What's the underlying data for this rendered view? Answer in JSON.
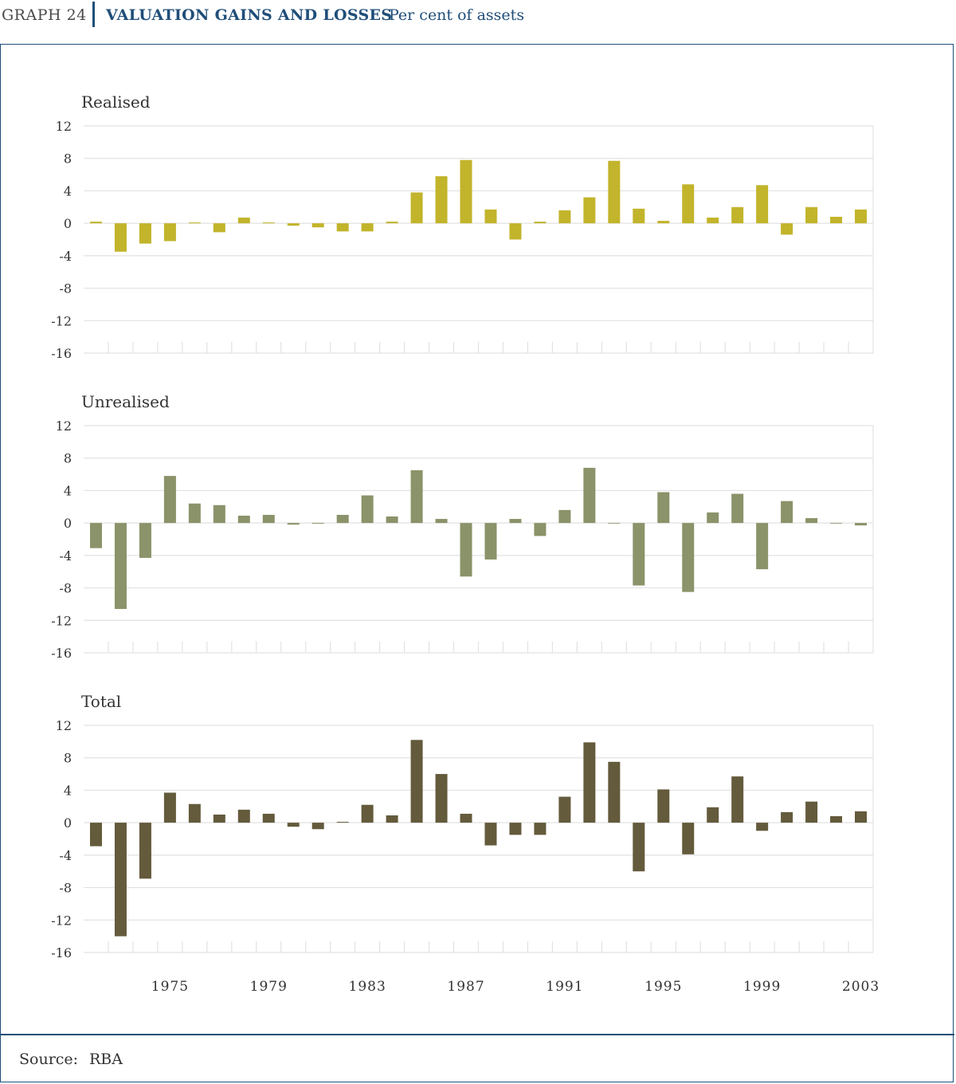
{
  "header": {
    "graph_number": "GRAPH 24",
    "title": "VALUATION GAINS AND LOSSES",
    "subtitle": "Per cent of assets"
  },
  "source": {
    "label": "Source:",
    "value": "RBA"
  },
  "colors": {
    "realised": "#c2b42b",
    "unrealised": "#8a9369",
    "total": "#645a3c",
    "grid": "#e2e2e2",
    "frame": "#1f4e79"
  },
  "chart_data": {
    "type": "bar",
    "x": [
      1972,
      1973,
      1974,
      1975,
      1976,
      1977,
      1978,
      1979,
      1980,
      1981,
      1982,
      1983,
      1984,
      1985,
      1986,
      1987,
      1988,
      1989,
      1990,
      1991,
      1992,
      1993,
      1994,
      1995,
      1996,
      1997,
      1998,
      1999,
      2000,
      2001,
      2002,
      2003
    ],
    "x_tick_labels": [
      "1975",
      "1979",
      "1983",
      "1987",
      "1991",
      "1995",
      "1999",
      "2003"
    ],
    "x_tick_years": [
      1975,
      1979,
      1983,
      1987,
      1991,
      1995,
      1999,
      2003
    ],
    "ylim": [
      -16,
      12
    ],
    "yticks": [
      12,
      8,
      4,
      0,
      -4,
      -8,
      -12,
      -16
    ],
    "grid": true,
    "panels": [
      {
        "title": "Realised",
        "color_key": "realised",
        "values": [
          0.2,
          -3.5,
          -2.5,
          -2.2,
          0.1,
          -1.1,
          0.7,
          0.1,
          -0.3,
          -0.5,
          -1.0,
          -1.0,
          0.2,
          3.8,
          5.8,
          7.8,
          1.7,
          -2.0,
          0.2,
          1.6,
          3.2,
          7.7,
          1.8,
          0.3,
          4.8,
          0.7,
          2.0,
          4.7,
          -1.4,
          2.0,
          0.8,
          1.7
        ]
      },
      {
        "title": "Unrealised",
        "color_key": "unrealised",
        "values": [
          -3.1,
          -10.6,
          -4.3,
          5.8,
          2.4,
          2.2,
          0.9,
          1.0,
          -0.2,
          -0.1,
          1.0,
          3.4,
          0.8,
          6.5,
          0.5,
          -6.6,
          -4.5,
          0.5,
          -1.6,
          1.6,
          6.8,
          0.0,
          -7.7,
          3.8,
          -8.5,
          1.3,
          3.6,
          -5.7,
          2.7,
          0.6,
          0.0,
          -0.3
        ]
      },
      {
        "title": "Total",
        "color_key": "total",
        "values": [
          -2.9,
          -14.0,
          -6.9,
          3.7,
          2.3,
          1.0,
          1.6,
          1.1,
          -0.5,
          -0.8,
          0.1,
          2.2,
          0.9,
          10.2,
          6.0,
          1.1,
          -2.8,
          -1.5,
          -1.5,
          3.2,
          9.9,
          7.5,
          -6.0,
          4.1,
          -3.9,
          1.9,
          5.7,
          -1.0,
          1.3,
          2.6,
          0.8,
          1.4
        ]
      }
    ]
  }
}
